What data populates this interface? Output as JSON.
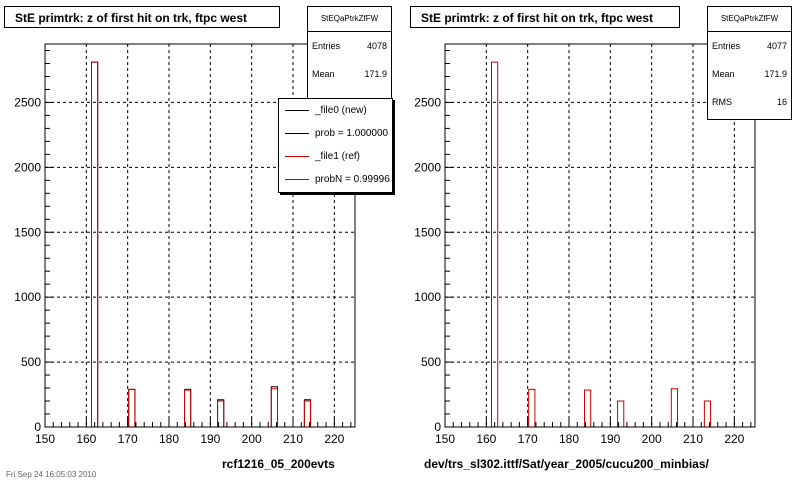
{
  "chart_data": [
    {
      "type": "bar",
      "title": "StE primtrk: z of first hit on trk, ftpc west",
      "xlabel": "rcf1216_05_200evts",
      "ylabel": "",
      "xlim": [
        150,
        225
      ],
      "ylim": [
        0,
        2950
      ],
      "xticks": [
        150,
        160,
        170,
        180,
        190,
        200,
        210,
        220
      ],
      "yticks": [
        0,
        500,
        1000,
        1500,
        2000,
        2500
      ],
      "grid": true,
      "bin_width": 1.5,
      "series": [
        {
          "name": "_file0 (new)",
          "color": "#000000",
          "points": [
            [
              162,
              2810
            ],
            [
              171,
              290
            ],
            [
              184.5,
              290
            ],
            [
              192.5,
              210
            ],
            [
              205.5,
              310
            ],
            [
              213.5,
              210
            ]
          ]
        },
        {
          "name": "_file1 (ref)",
          "color": "#cc0000",
          "points": [
            [
              162,
              2810
            ],
            [
              171,
              290
            ],
            [
              184.5,
              285
            ],
            [
              192.5,
              200
            ],
            [
              205.5,
              295
            ],
            [
              213.5,
              200
            ]
          ]
        }
      ],
      "stats": {
        "name": "StEQaPtrkZfFW",
        "rows": [
          [
            "Entries",
            "4078"
          ],
          [
            "Mean",
            "171.9"
          ]
        ]
      },
      "legend": {
        "placement": "top-right",
        "entries": [
          {
            "label": "_file0 (new)",
            "color": "#000000"
          },
          {
            "label": "prob = 1.000000",
            "color": "#000000"
          },
          {
            "label": "_file1 (ref)",
            "color": "#cc0000"
          },
          {
            "label": "probN = 0.99996",
            "color": "#cc0000"
          }
        ]
      }
    },
    {
      "type": "bar",
      "title": "StE primtrk: z of first hit on trk, ftpc west",
      "xlabel": "dev/trs_sl302.ittf/Sat/year_2005/cucu200_minbias/",
      "ylabel": "",
      "xlim": [
        150,
        225
      ],
      "ylim": [
        0,
        2950
      ],
      "xticks": [
        150,
        160,
        170,
        180,
        190,
        200,
        210,
        220
      ],
      "yticks": [
        0,
        500,
        1000,
        1500,
        2000,
        2500
      ],
      "grid": true,
      "bin_width": 1.5,
      "series": [
        {
          "name": "",
          "color": "#cc0000",
          "points": [
            [
              162,
              2810
            ],
            [
              171,
              290
            ],
            [
              184.5,
              285
            ],
            [
              192.5,
              200
            ],
            [
              205.5,
              295
            ],
            [
              213.5,
              200
            ]
          ]
        }
      ],
      "stats": {
        "name": "StEQaPtrkZfFW",
        "rows": [
          [
            "Entries",
            "4077"
          ],
          [
            "Mean",
            "171.9"
          ],
          [
            "RMS",
            "16"
          ]
        ]
      }
    }
  ],
  "footer": "Fri Sep 24 16:05:03 2010",
  "colors": {
    "grid": "#000000",
    "new": "#000000",
    "ref": "#cc0000"
  }
}
